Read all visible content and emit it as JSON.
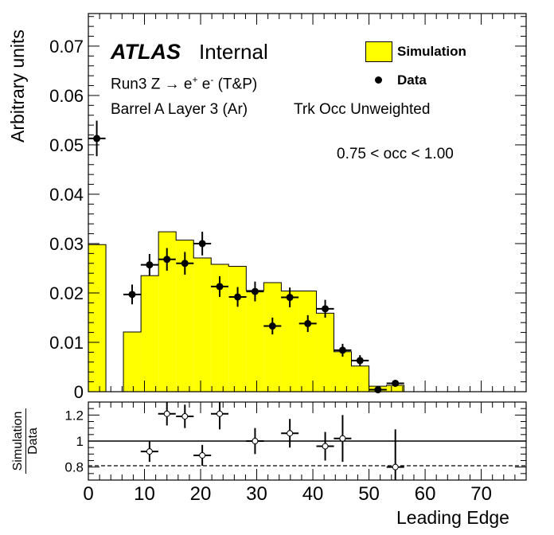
{
  "chart_data": {
    "type": "bar",
    "x_bin_width": 3.125,
    "labels": {
      "atlas": "ATLAS",
      "internal": "Internal",
      "process_prefix": "Run3 Z",
      "process_arrow": "→",
      "process_eplus": "e",
      "process_eminus": "e",
      "process_suffix": "(T&P)",
      "region": "Barrel A Layer 3 (Ar)",
      "weighting": "Trk Occ Unweighted",
      "occ_cut": "0.75 < occ < 1.00"
    },
    "legend": {
      "position": "top-right",
      "simulation": "Simulation",
      "data": "Data"
    },
    "top": {
      "ylabel": "Arbitrary units",
      "ylim": [
        0,
        0.0766
      ],
      "yticks": [
        "0",
        "0.01",
        "0.02",
        "0.03",
        "0.04",
        "0.05",
        "0.06",
        "0.07"
      ],
      "yticks_values": [
        0,
        0.01,
        0.02,
        0.03,
        0.04,
        0.05,
        0.06,
        0.07
      ]
    },
    "bottom": {
      "ylabel_num": "Simulation",
      "ylabel_den": "Data",
      "ylim": [
        0.7,
        1.3
      ],
      "yticks": [
        "0.8",
        "1",
        "1.2"
      ],
      "yticks_values": [
        0.8,
        1.0,
        1.2
      ],
      "reference_line": 1.0,
      "dashed_line": 0.81
    },
    "xaxis": {
      "label": "Leading Edge",
      "xlim": [
        0,
        78
      ],
      "ticks": [
        "0",
        "10",
        "20",
        "30",
        "40",
        "50",
        "60",
        "70"
      ],
      "ticks_values": [
        0,
        10,
        20,
        30,
        40,
        50,
        60,
        70
      ]
    },
    "simulation_bins": [
      {
        "x0": 0.0,
        "x1": 3.125,
        "y": 0.0298
      },
      {
        "x0": 3.125,
        "x1": 6.25,
        "y": 0.0
      },
      {
        "x0": 6.25,
        "x1": 9.375,
        "y": 0.0121
      },
      {
        "x0": 9.375,
        "x1": 12.5,
        "y": 0.0235
      },
      {
        "x0": 12.5,
        "x1": 15.625,
        "y": 0.0324
      },
      {
        "x0": 15.625,
        "x1": 18.75,
        "y": 0.0307
      },
      {
        "x0": 18.75,
        "x1": 21.875,
        "y": 0.0271
      },
      {
        "x0": 21.875,
        "x1": 25.0,
        "y": 0.0258
      },
      {
        "x0": 25.0,
        "x1": 28.125,
        "y": 0.0254
      },
      {
        "x0": 28.125,
        "x1": 31.25,
        "y": 0.0205
      },
      {
        "x0": 31.25,
        "x1": 34.375,
        "y": 0.0221
      },
      {
        "x0": 34.375,
        "x1": 37.5,
        "y": 0.0204
      },
      {
        "x0": 37.5,
        "x1": 40.625,
        "y": 0.0204
      },
      {
        "x0": 40.625,
        "x1": 43.75,
        "y": 0.0159
      },
      {
        "x0": 43.75,
        "x1": 46.875,
        "y": 0.0081
      },
      {
        "x0": 46.875,
        "x1": 50.0,
        "y": 0.0052
      },
      {
        "x0": 50.0,
        "x1": 53.125,
        "y": 0.0011
      },
      {
        "x0": 53.125,
        "x1": 56.25,
        "y": 0.0013
      }
    ],
    "data_points": [
      {
        "x": 1.5,
        "y": 0.0513,
        "xerr": 1.5625,
        "yerr": 0.0036
      },
      {
        "x": 7.8,
        "y": 0.0197,
        "xerr": 1.5625,
        "yerr": 0.002
      },
      {
        "x": 10.9,
        "y": 0.0257,
        "xerr": 1.5625,
        "yerr": 0.0022
      },
      {
        "x": 14.0,
        "y": 0.0268,
        "xerr": 1.5625,
        "yerr": 0.0023
      },
      {
        "x": 17.2,
        "y": 0.026,
        "xerr": 1.5625,
        "yerr": 0.0023
      },
      {
        "x": 20.3,
        "y": 0.03,
        "xerr": 1.5625,
        "yerr": 0.0024
      },
      {
        "x": 23.4,
        "y": 0.0213,
        "xerr": 1.5625,
        "yerr": 0.0021
      },
      {
        "x": 26.6,
        "y": 0.0192,
        "xerr": 1.5625,
        "yerr": 0.002
      },
      {
        "x": 29.7,
        "y": 0.0203,
        "xerr": 1.5625,
        "yerr": 0.002
      },
      {
        "x": 32.8,
        "y": 0.0133,
        "xerr": 1.5625,
        "yerr": 0.0017
      },
      {
        "x": 35.9,
        "y": 0.0191,
        "xerr": 1.5625,
        "yerr": 0.002
      },
      {
        "x": 39.1,
        "y": 0.0138,
        "xerr": 1.5625,
        "yerr": 0.0017
      },
      {
        "x": 42.2,
        "y": 0.0168,
        "xerr": 1.5625,
        "yerr": 0.0018
      },
      {
        "x": 45.3,
        "y": 0.0084,
        "xerr": 1.5625,
        "yerr": 0.0013
      },
      {
        "x": 48.4,
        "y": 0.0063,
        "xerr": 1.5625,
        "yerr": 0.0011
      },
      {
        "x": 51.6,
        "y": 0.0004,
        "xerr": 1.5625,
        "yerr": 0.0003
      },
      {
        "x": 54.7,
        "y": 0.0017,
        "xerr": 1.5625,
        "yerr": 0.0005
      }
    ],
    "ratio_points": [
      {
        "x": 10.9,
        "y": 0.92,
        "xerr": 1.5625,
        "yerr": 0.08
      },
      {
        "x": 14.0,
        "y": 1.21,
        "xerr": 1.5625,
        "yerr": 0.09
      },
      {
        "x": 17.2,
        "y": 1.19,
        "xerr": 1.5625,
        "yerr": 0.09
      },
      {
        "x": 20.3,
        "y": 0.89,
        "xerr": 1.5625,
        "yerr": 0.08
      },
      {
        "x": 23.4,
        "y": 1.21,
        "xerr": 1.5625,
        "yerr": 0.12
      },
      {
        "x": 29.7,
        "y": 1.0,
        "xerr": 1.5625,
        "yerr": 0.1
      },
      {
        "x": 35.9,
        "y": 1.06,
        "xerr": 1.5625,
        "yerr": 0.11
      },
      {
        "x": 42.2,
        "y": 0.96,
        "xerr": 1.5625,
        "yerr": 0.11
      },
      {
        "x": 45.3,
        "y": 1.02,
        "xerr": 1.5625,
        "yerr": 0.18
      },
      {
        "x": 54.7,
        "y": 0.8,
        "xerr": 1.5625,
        "yerr": 0.29
      }
    ],
    "colors": {
      "simulation_fill": "#ffff00",
      "outline": "#000000",
      "background": "#ffffff"
    }
  }
}
